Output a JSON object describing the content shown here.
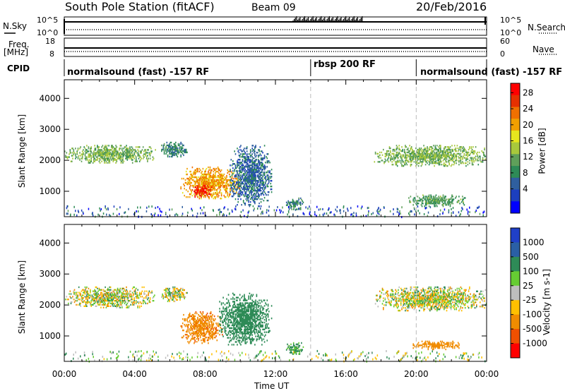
{
  "header": {
    "station": "South Pole Station (fitACF)",
    "beam": "Beam 09",
    "date": "20/Feb/2016"
  },
  "top_labels": {
    "nsky": "N.Sky",
    "nsky_tick_top": "10^5",
    "nsky_tick_bottom": "10^0",
    "nsearch": "N.Search",
    "freq": "Freq.",
    "freq_unit": "[MHz]",
    "freq_tick_top": "18",
    "freq_tick_bottom": "8",
    "nave": "Nave",
    "nave_tick_top": "60",
    "nave_tick_bottom": "0",
    "cpid": "CPID"
  },
  "cpid_segments": [
    {
      "label": "normalsound (fast) -157 RF",
      "start_hour": 0.0
    },
    {
      "label": "rbsp 200 RF",
      "start_hour": 14.0
    },
    {
      "label": "normalsound (fast) -157 RF",
      "start_hour": 20.0
    }
  ],
  "chart_data": [
    {
      "type": "heatmap",
      "quantity": "power",
      "ylabel": "Slant Range [km]",
      "yticks": [
        1000,
        2000,
        3000,
        4000
      ],
      "ylim": [
        180,
        4600
      ],
      "xlim": [
        0,
        24
      ],
      "colorbar": {
        "label": "Power [dB]",
        "ticks": [
          4,
          8,
          12,
          16,
          20,
          24,
          28
        ],
        "colors": [
          "#0000ff",
          "#1c3fbf",
          "#2f5f9f",
          "#2e8b57",
          "#5fa05a",
          "#a8c83c",
          "#e6e61e",
          "#f0a000",
          "#f07000",
          "#e63000",
          "#ff0000"
        ]
      },
      "regions": [
        {
          "t0": 0.0,
          "t1": 5.2,
          "r0": 1900,
          "r1": 2500,
          "level": 14
        },
        {
          "t0": 5.5,
          "t1": 7.0,
          "r0": 2100,
          "r1": 2600,
          "level": 10
        },
        {
          "t0": 6.6,
          "t1": 10.0,
          "r0": 750,
          "r1": 1800,
          "level": 22
        },
        {
          "t0": 7.2,
          "t1": 8.4,
          "r0": 800,
          "r1": 1200,
          "level": 28
        },
        {
          "t0": 9.4,
          "t1": 11.8,
          "r0": 500,
          "r1": 2500,
          "level": 8
        },
        {
          "t0": 12.6,
          "t1": 13.6,
          "r0": 400,
          "r1": 800,
          "level": 10
        },
        {
          "t0": 17.6,
          "t1": 24.0,
          "r0": 1800,
          "r1": 2500,
          "level": 14
        },
        {
          "t0": 19.5,
          "t1": 22.8,
          "r0": 500,
          "r1": 900,
          "level": 12
        }
      ]
    },
    {
      "type": "heatmap",
      "quantity": "velocity",
      "ylabel": "Slant Range [km]",
      "yticks": [
        1000,
        2000,
        3000,
        4000
      ],
      "ylim": [
        180,
        4600
      ],
      "xlim": [
        0,
        24
      ],
      "colorbar": {
        "label": "Velocity [m s-1]",
        "ticks": [
          1000,
          500,
          100,
          25,
          -25,
          -100,
          -500,
          -1000
        ],
        "colors": [
          "#2040c8",
          "#2a5fa5",
          "#2e8b57",
          "#66cc33",
          "#bebebe",
          "#ffc000",
          "#f08c00",
          "#f05000",
          "#ff0000"
        ]
      },
      "regions": [
        {
          "t0": 0.0,
          "t1": 5.2,
          "r0": 1900,
          "r1": 2600,
          "velocity": 0
        },
        {
          "t0": 5.5,
          "t1": 7.0,
          "r0": 2100,
          "r1": 2600,
          "velocity": 0
        },
        {
          "t0": 6.6,
          "t1": 9.0,
          "r0": 750,
          "r1": 1800,
          "velocity": -400
        },
        {
          "t0": 8.8,
          "t1": 11.8,
          "r0": 700,
          "r1": 2400,
          "velocity": 300
        },
        {
          "t0": 12.6,
          "t1": 13.6,
          "r0": 400,
          "r1": 800,
          "velocity": 150
        },
        {
          "t0": 17.6,
          "t1": 24.0,
          "r0": 1800,
          "r1": 2600,
          "velocity": 0
        },
        {
          "t0": 19.6,
          "t1": 22.5,
          "r0": 550,
          "r1": 850,
          "velocity": -300
        }
      ]
    }
  ],
  "xaxis": {
    "ticks": [
      "00:00",
      "04:00",
      "08:00",
      "12:00",
      "16:00",
      "20:00",
      "00:00"
    ],
    "label": "Time UT"
  }
}
